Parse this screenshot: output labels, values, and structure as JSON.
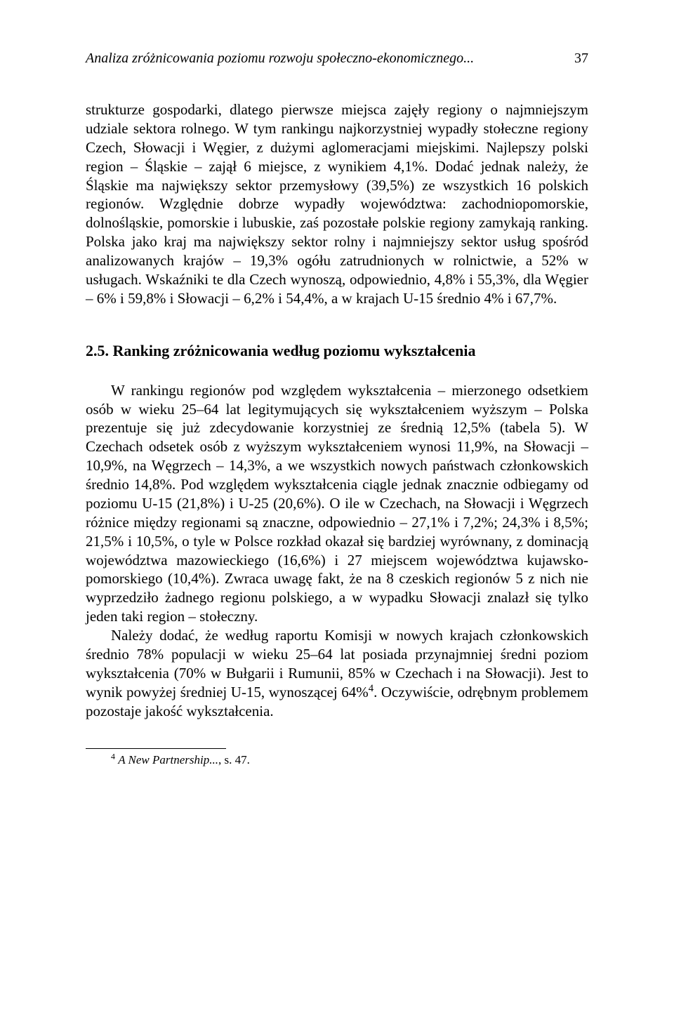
{
  "header": {
    "running_title": "Analiza zróżnicowania poziomu rozwoju społeczno-ekonomicznego...",
    "page_number": "37"
  },
  "para1": "strukturze gospodarki, dlatego pierwsze miejsca zajęły regiony o najmniejszym udziale sektora rolnego. W tym rankingu najkorzystniej wypadły stołeczne regiony Czech, Słowacji i Węgier, z dużymi aglomeracjami miejskimi. Najlepszy polski region – Śląskie – zajął 6 miejsce, z wynikiem 4,1%. Dodać jednak należy, że Śląskie ma największy sektor przemysłowy (39,5%) ze wszystkich 16 polskich regionów. Względnie dobrze wypadły województwa: zachodniopomorskie, dolnośląskie, pomorskie i lubuskie, zaś pozostałe polskie regiony zamykają ranking. Polska jako kraj ma największy sektor rolny i najmniejszy sektor usług spośród analizowanych krajów – 19,3% ogółu zatrudnionych w rolnictwie, a 52% w usługach. Wskaźniki te dla Czech wynoszą, odpowiednio, 4,8% i 55,3%, dla Węgier – 6% i 59,8% i Słowacji – 6,2% i 54,4%, a w krajach U-15 średnio 4% i 67,7%.",
  "section_heading": "2.5. Ranking zróżnicowania według poziomu wykształcenia",
  "para2": "W rankingu regionów pod względem wykształcenia – mierzonego odsetkiem osób w wieku 25–64 lat legitymujących się wykształceniem wyższym – Polska prezentuje się już zdecydowanie korzystniej ze średnią 12,5% (tabela 5). W Czechach odsetek osób z wyższym wykształceniem wynosi 11,9%, na Słowacji – 10,9%, na Węgrzech – 14,3%, a we wszystkich nowych państwach członkowskich średnio 14,8%. Pod względem wykształcenia ciągle jednak znacznie odbiegamy od poziomu U-15 (21,8%) i U-25 (20,6%). O ile w Czechach, na Słowacji i Węgrzech różnice między regionami są znaczne, odpowiednio – 27,1% i 7,2%; 24,3% i 8,5%; 21,5% i 10,5%, o tyle w Polsce rozkład okazał się bardziej wyrównany, z dominacją województwa mazowieckiego (16,6%) i 27 miejscem województwa kujawsko-pomorskiego (10,4%). Zwraca uwagę fakt, że na 8 czeskich regionów 5 z nich nie wyprzedziło żadnego regionu polskiego, a w wypadku Słowacji znalazł się tylko jeden taki region – stołeczny.",
  "para3_pre": "Należy dodać, że według raportu Komisji w nowych krajach członkowskich średnio 78% populacji w wieku 25–64 lat posiada przynajmniej średni poziom wykształcenia (70% w Bułgarii i Rumunii, 85% w Czechach i na Słowacji). Jest to wynik powyżej średniej U-15, wynoszącej 64%",
  "para3_sup": "4",
  "para3_post": ". Oczywiście, odrębnym problemem pozostaje jakość wykształcenia.",
  "footnote": {
    "marker": "4",
    "text_italic": "A New Partnership...",
    "text_rest": ", s. 47."
  }
}
